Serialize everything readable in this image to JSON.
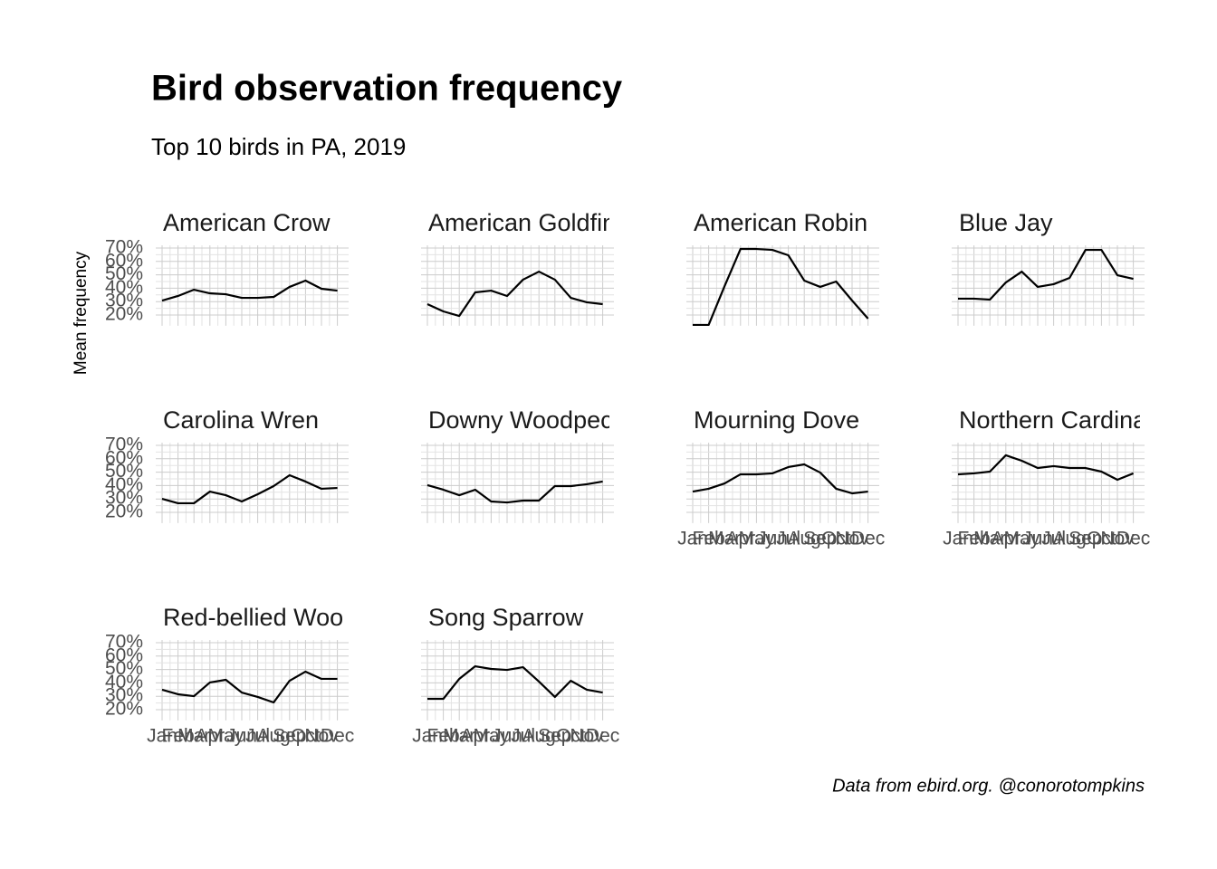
{
  "title": "Bird observation frequency",
  "subtitle": "Top 10 birds in PA, 2019",
  "y_label": "Mean frequency",
  "caption": "Data from ebird.org. @conorotompkins",
  "axes": {
    "categories": [
      "Jan",
      "Feb",
      "Mar",
      "Apr",
      "May",
      "Jun",
      "Jul",
      "Aug",
      "Sep",
      "Oct",
      "Nov",
      "Dec"
    ],
    "ylim": [
      12,
      72
    ],
    "yticks": [
      {
        "value": 20,
        "label": "20%"
      },
      {
        "value": 30,
        "label": "30%"
      },
      {
        "value": 40,
        "label": "40%"
      },
      {
        "value": 50,
        "label": "50%"
      },
      {
        "value": 60,
        "label": "60%"
      },
      {
        "value": 70,
        "label": "70%"
      }
    ],
    "grid": true
  },
  "chart_data": [
    {
      "type": "line",
      "title": "American Crow",
      "color": "#000000",
      "values": [
        30.8,
        34.2,
        38.9,
        36.2,
        35.5,
        32.8,
        32.8,
        33.5,
        41,
        45.7,
        39.6,
        38.2
      ]
    },
    {
      "type": "line",
      "title": "American Goldfinc",
      "color": "#000000",
      "values": [
        28.1,
        22.7,
        19.3,
        36.9,
        38.2,
        34.2,
        46.4,
        52.4,
        46.4,
        32.8,
        29.5,
        28.1
      ]
    },
    {
      "type": "line",
      "title": "American Robin",
      "color": "#000000",
      "values": [
        12.6,
        12.6,
        41.6,
        69.3,
        69.3,
        68.6,
        64.6,
        45.7,
        41,
        45,
        30.8,
        17.3
      ]
    },
    {
      "type": "line",
      "title": "Blue Jay",
      "color": "#000000",
      "values": [
        32.2,
        32.2,
        31.5,
        44.3,
        52.4,
        41,
        43,
        47.7,
        68.6,
        68.6,
        49.7,
        47
      ]
    },
    {
      "type": "line",
      "title": "Carolina Wren",
      "color": "#000000",
      "values": [
        30.1,
        26.8,
        26.8,
        35.5,
        32.8,
        28.1,
        33.5,
        39.6,
        47.7,
        43,
        37.6,
        38.2
      ]
    },
    {
      "type": "line",
      "title": "Downy Woodpeck",
      "color": "#000000",
      "values": [
        40.3,
        36.9,
        32.8,
        36.9,
        28.1,
        27.4,
        28.8,
        28.8,
        39.6,
        39.6,
        41,
        43
      ]
    },
    {
      "type": "line",
      "title": "Mourning Dove",
      "color": "#000000",
      "values": [
        35.5,
        37.6,
        41.6,
        48.4,
        48.4,
        49.1,
        53.8,
        55.8,
        49.7,
        37.6,
        34.2,
        35.5
      ]
    },
    {
      "type": "line",
      "title": "Northern Cardinal",
      "color": "#000000",
      "values": [
        48.4,
        49.1,
        50.4,
        62.6,
        58.5,
        53.1,
        54.5,
        53.1,
        53.1,
        50.4,
        44.3,
        49.1
      ]
    },
    {
      "type": "line",
      "title": "Red-bellied Wood",
      "color": "#000000",
      "values": [
        34.9,
        31.5,
        30.1,
        40.3,
        42.3,
        32.8,
        29.5,
        25.4,
        41.6,
        48.4,
        43,
        43
      ]
    },
    {
      "type": "line",
      "title": "Song Sparrow",
      "color": "#000000",
      "values": [
        28.1,
        28.1,
        43,
        52.4,
        50.4,
        49.7,
        51.7,
        41,
        29.5,
        41.6,
        34.9,
        32.8
      ]
    }
  ]
}
